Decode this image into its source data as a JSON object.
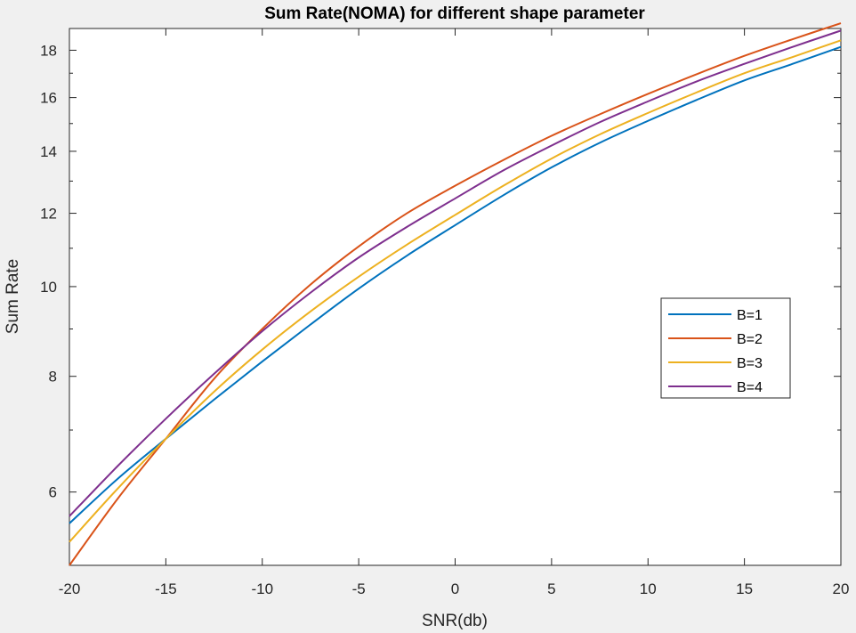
{
  "chart_data": {
    "type": "line",
    "title": "Sum Rate(NOMA) for different shape parameter",
    "xlabel": "SNR(db)",
    "ylabel": "Sum Rate",
    "xlim": [
      -20,
      20
    ],
    "ylim": [
      5,
      19
    ],
    "yscale": "log",
    "xticks": [
      -20,
      -15,
      -10,
      -5,
      0,
      5,
      10,
      15,
      20
    ],
    "yticks": [
      6,
      8,
      10,
      12,
      14,
      16,
      18
    ],
    "legend_position": "right",
    "x": [
      -20,
      -17.5,
      -15,
      -12.5,
      -10,
      -7.5,
      -5,
      -2.5,
      0,
      2.5,
      5,
      7.5,
      10,
      12.5,
      15,
      17.5,
      20
    ],
    "series": [
      {
        "name": "B=1",
        "color": "#0072BD",
        "values": [
          5.55,
          6.2,
          6.85,
          7.55,
          8.3,
          9.1,
          9.95,
          10.8,
          11.65,
          12.55,
          13.45,
          14.3,
          15.1,
          15.9,
          16.7,
          17.4,
          18.15
        ]
      },
      {
        "name": "B=2",
        "color": "#D95319",
        "values": [
          5.0,
          5.9,
          6.85,
          7.95,
          9.0,
          10.05,
          11.05,
          12.0,
          12.85,
          13.7,
          14.55,
          15.35,
          16.15,
          16.95,
          17.75,
          18.5,
          19.25
        ]
      },
      {
        "name": "B=3",
        "color": "#EDB120",
        "values": [
          5.3,
          6.05,
          6.85,
          7.7,
          8.55,
          9.4,
          10.25,
          11.1,
          11.95,
          12.85,
          13.75,
          14.6,
          15.4,
          16.2,
          17.0,
          17.7,
          18.45
        ]
      },
      {
        "name": "B=4",
        "color": "#7E2F8E",
        "values": [
          5.65,
          6.4,
          7.2,
          8.05,
          8.95,
          9.85,
          10.75,
          11.6,
          12.45,
          13.35,
          14.2,
          15.05,
          15.85,
          16.65,
          17.4,
          18.15,
          18.9
        ]
      }
    ]
  }
}
